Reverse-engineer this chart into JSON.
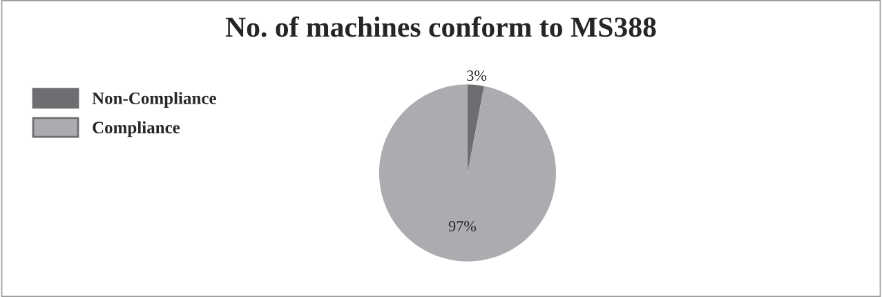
{
  "chart_data": {
    "type": "pie",
    "title": "No. of machines conform to MS388",
    "categories": [
      "Non-Compliance",
      "Compliance"
    ],
    "values": [
      3,
      97
    ],
    "colors": [
      "#6d6e71",
      "#abacaf"
    ],
    "value_labels": [
      "3%",
      "97%"
    ],
    "legend": "left"
  }
}
